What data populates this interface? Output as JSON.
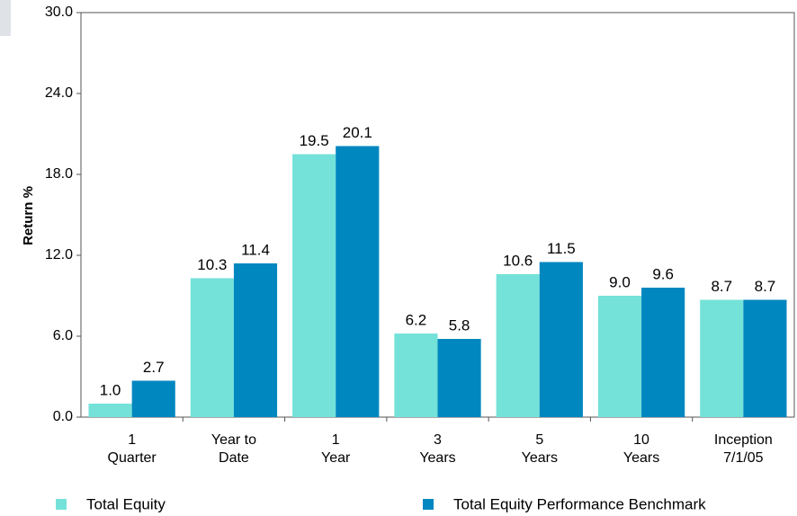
{
  "chart_data": {
    "type": "bar",
    "y_label": "Return %",
    "categories": [
      "1\nQuarter",
      "Year to\nDate",
      "1\nYear",
      "3\nYears",
      "5\nYears",
      "10\nYears",
      "Inception\n7/1/05"
    ],
    "series": [
      {
        "name": "Total Equity",
        "color": "#74e2d9",
        "values": [
          1.0,
          10.3,
          19.5,
          6.2,
          10.6,
          9.0,
          8.7
        ],
        "value_labels": [
          "1.0",
          "10.3",
          "19.5",
          "6.2",
          "10.6",
          "9.0",
          "8.7"
        ]
      },
      {
        "name": "Total Equity Performance Benchmark",
        "color": "#0087c0",
        "values": [
          2.7,
          11.4,
          20.1,
          5.8,
          11.5,
          9.6,
          8.7
        ],
        "value_labels": [
          "2.7",
          "11.4",
          "20.1",
          "5.8",
          "11.5",
          "9.6",
          "8.7"
        ]
      }
    ],
    "ylim": [
      0,
      30
    ],
    "yticks": [
      {
        "value": 0,
        "label": "0.0"
      },
      {
        "value": 6,
        "label": "6.0"
      },
      {
        "value": 12,
        "label": "12.0"
      },
      {
        "value": 18,
        "label": "18.0"
      },
      {
        "value": 24,
        "label": "24.0"
      },
      {
        "value": 30,
        "label": "30.0"
      }
    ]
  }
}
